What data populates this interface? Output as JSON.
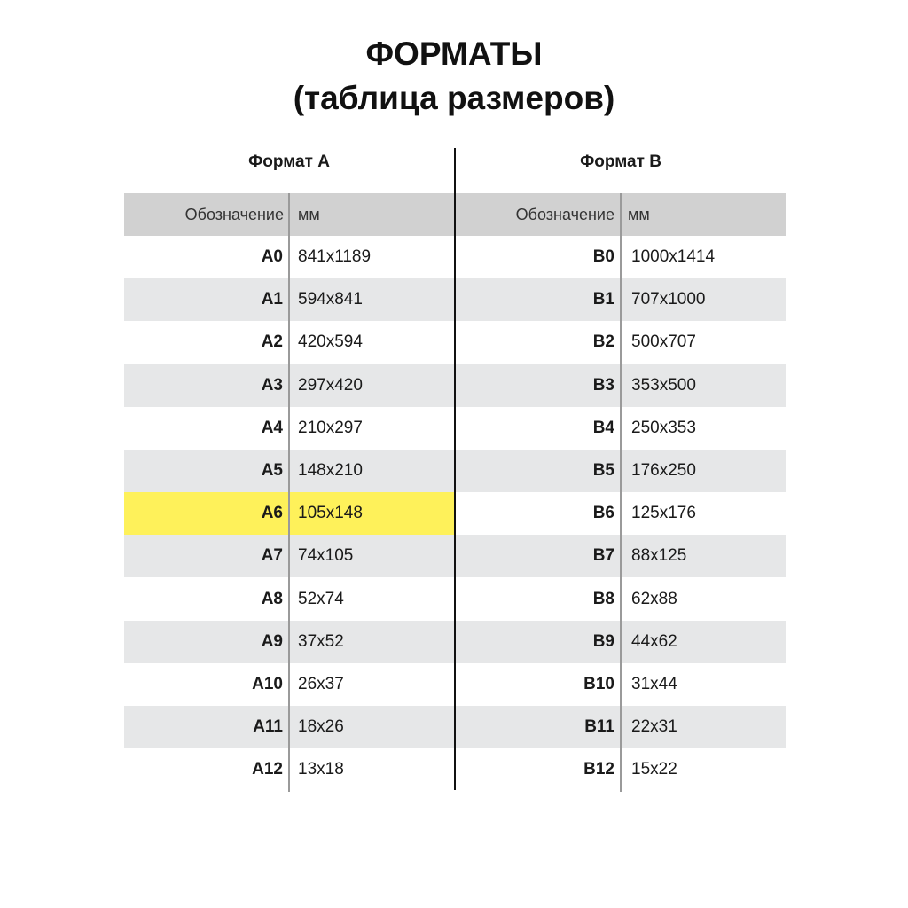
{
  "title_line1": "ФОРМАТЫ",
  "title_line2": "(таблица размеров)",
  "colors": {
    "header_bg": "#d1d1d1",
    "stripe_bg": "#e6e7e8",
    "highlight": "#fef15a"
  },
  "table_a": {
    "heading": "Формат А",
    "col_code": "Обозначение",
    "col_mm": "мм",
    "highlighted": "A6",
    "rows": [
      {
        "code": "A0",
        "mm": "841x1189"
      },
      {
        "code": "A1",
        "mm": "594x841"
      },
      {
        "code": "A2",
        "mm": "420x594"
      },
      {
        "code": "A3",
        "mm": "297x420"
      },
      {
        "code": "A4",
        "mm": "210x297"
      },
      {
        "code": "A5",
        "mm": "148x210"
      },
      {
        "code": "A6",
        "mm": "105x148"
      },
      {
        "code": "A7",
        "mm": "74x105"
      },
      {
        "code": "A8",
        "mm": "52x74"
      },
      {
        "code": "A9",
        "mm": "37x52"
      },
      {
        "code": "A10",
        "mm": "26x37"
      },
      {
        "code": "A11",
        "mm": "18x26"
      },
      {
        "code": "A12",
        "mm": "13x18"
      }
    ]
  },
  "table_b": {
    "heading": "Формат В",
    "col_code": "Обозначение",
    "col_mm": "мм",
    "rows": [
      {
        "code": "B0",
        "mm": "1000x1414"
      },
      {
        "code": "B1",
        "mm": "707x1000"
      },
      {
        "code": "B2",
        "mm": "500x707"
      },
      {
        "code": "B3",
        "mm": "353x500"
      },
      {
        "code": "B4",
        "mm": "250x353"
      },
      {
        "code": "B5",
        "mm": "176x250"
      },
      {
        "code": "B6",
        "mm": "125x176"
      },
      {
        "code": "B7",
        "mm": "88x125"
      },
      {
        "code": "B8",
        "mm": "62x88"
      },
      {
        "code": "B9",
        "mm": "44x62"
      },
      {
        "code": "B10",
        "mm": "31x44"
      },
      {
        "code": "B11",
        "mm": "22x31"
      },
      {
        "code": "B12",
        "mm": "15x22"
      }
    ]
  }
}
